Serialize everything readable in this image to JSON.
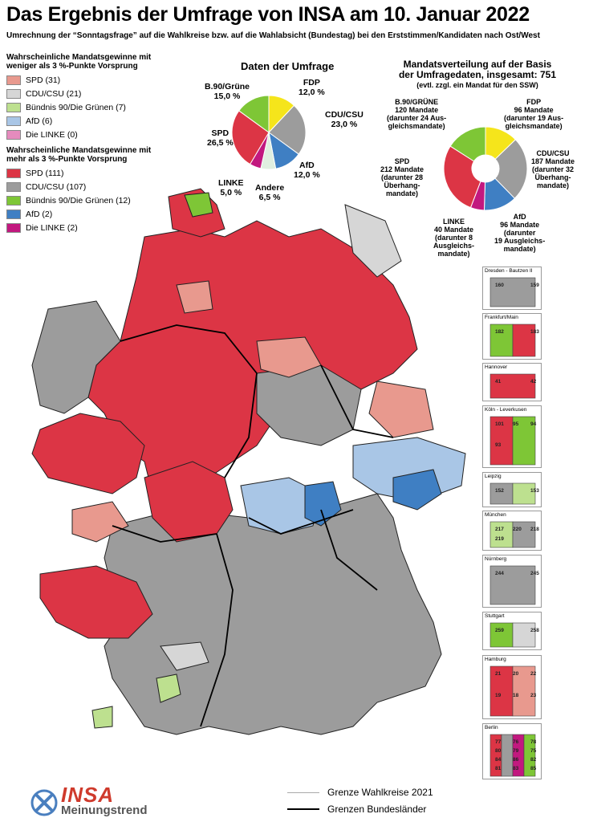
{
  "title": "Das Ergebnis der Umfrage von INSA am 10. Januar 2022",
  "subtitle": "Umrechnung der “Sonntagsfrage” auf die Wahlkreise bzw. auf die Wahlabsicht (Bundestag) bei den Erststimmen/Kandidaten nach Ost/West",
  "colors": {
    "spd_strong": "#dc3545",
    "spd_light": "#e8998e",
    "cdu_strong": "#9c9c9c",
    "cdu_light": "#d6d6d6",
    "gruene_strong": "#7ec636",
    "gruene_light": "#bde08f",
    "afd_strong": "#3f7fc3",
    "afd_light": "#a9c6e6",
    "linke_strong": "#c2187f",
    "linke_light": "#e58bbd",
    "fdp": "#f5e51b",
    "andere": "#e0efe0"
  },
  "legend": {
    "weak_heading": "Wahrscheinliche Mandatsgewinne mit weniger als 3 %-Punkte Vorsprung",
    "weak_items": [
      {
        "label": "SPD (31)",
        "color": "#e8998e"
      },
      {
        "label": "CDU/CSU (21)",
        "color": "#d6d6d6"
      },
      {
        "label": "Bündnis 90/Die Grünen (7)",
        "color": "#bde08f"
      },
      {
        "label": "AfD (6)",
        "color": "#a9c6e6"
      },
      {
        "label": "Die LINKE (0)",
        "color": "#e58bbd"
      }
    ],
    "strong_heading": "Wahrscheinliche Mandatsgewinne mit mehr als 3 %-Punkte Vorsprung",
    "strong_items": [
      {
        "label": "SPD (111)",
        "color": "#dc3545"
      },
      {
        "label": "CDU/CSU (107)",
        "color": "#9c9c9c"
      },
      {
        "label": "Bündnis 90/Die Grünen (12)",
        "color": "#7ec636"
      },
      {
        "label": "AfD (2)",
        "color": "#3f7fc3"
      },
      {
        "label": "Die LINKE (2)",
        "color": "#c2187f"
      }
    ]
  },
  "poll": {
    "heading": "Daten der Umfrage",
    "slices": [
      {
        "party": "FDP",
        "value": 12.0,
        "label": "FDP",
        "value_label": "12,0 %",
        "color": "#f5e51b"
      },
      {
        "party": "CDU/CSU",
        "value": 23.0,
        "label": "CDU/CSU",
        "value_label": "23,0 %",
        "color": "#9c9c9c"
      },
      {
        "party": "AfD",
        "value": 12.0,
        "label": "AfD",
        "value_label": "12,0 %",
        "color": "#3f7fc3"
      },
      {
        "party": "Andere",
        "value": 6.5,
        "label": "Andere",
        "value_label": "6,5 %",
        "color": "#e0efe0"
      },
      {
        "party": "LINKE",
        "value": 5.0,
        "label": "LINKE",
        "value_label": "5,0 %",
        "color": "#c2187f"
      },
      {
        "party": "SPD",
        "value": 26.5,
        "label": "SPD",
        "value_label": "26,5 %",
        "color": "#dc3545"
      },
      {
        "party": "B.90/Grüne",
        "value": 15.0,
        "label": "B.90/Grüne",
        "value_label": "15,0 %",
        "color": "#7ec636"
      }
    ]
  },
  "seats": {
    "heading_line1": "Mandatsverteilung auf der Basis",
    "heading_line2": "der Umfragedaten, insgesamt: 751",
    "note": "(evtl. zzgl. ein Mandat für den SSW)",
    "slices": [
      {
        "party": "FDP",
        "value": 96,
        "lines": [
          "FDP",
          "96 Mandate",
          "(darunter 19 Aus-",
          "gleichsmandate)"
        ],
        "color": "#f5e51b"
      },
      {
        "party": "CDU/CSU",
        "value": 187,
        "lines": [
          "CDU/CSU",
          "187 Mandate",
          "(darunter 32",
          "Überhang-",
          "mandate)"
        ],
        "color": "#9c9c9c"
      },
      {
        "party": "AfD",
        "value": 96,
        "lines": [
          "AfD",
          "96 Mandate",
          "(darunter",
          "19 Ausgleichs-",
          "mandate)"
        ],
        "color": "#3f7fc3"
      },
      {
        "party": "LINKE",
        "value": 40,
        "lines": [
          "LINKE",
          "40 Mandate",
          "(darunter 8",
          "Ausgleichs-",
          "mandate)"
        ],
        "color": "#c2187f"
      },
      {
        "party": "SPD",
        "value": 212,
        "lines": [
          "SPD",
          "212 Mandate",
          "(darunter 28",
          "Überhang-",
          "mandate)"
        ],
        "color": "#dc3545"
      },
      {
        "party": "B.90/GRÜNE",
        "value": 120,
        "lines": [
          "B.90/GRÜNE",
          "120 Mandate",
          "(darunter 24 Aus-",
          "gleichsmandate)"
        ],
        "color": "#7ec636"
      }
    ]
  },
  "insets": [
    {
      "name": "Dresden - Bautzen II",
      "numbers": [
        "160",
        "159"
      ]
    },
    {
      "name": "Frankfurt/Main",
      "numbers": [
        "182",
        "183"
      ]
    },
    {
      "name": "Hannover",
      "numbers": [
        "41",
        "42"
      ]
    },
    {
      "name": "Köln - Leverkusen",
      "numbers": [
        "101",
        "95",
        "94",
        "93"
      ]
    },
    {
      "name": "Leipzig",
      "numbers": [
        "152",
        "153"
      ]
    },
    {
      "name": "München",
      "numbers": [
        "217",
        "220",
        "218",
        "219"
      ]
    },
    {
      "name": "Nürnberg",
      "numbers": [
        "244",
        "245"
      ]
    },
    {
      "name": "Stuttgart",
      "numbers": [
        "259",
        "258"
      ]
    },
    {
      "name": "Hamburg",
      "numbers": [
        "21",
        "20",
        "22",
        "19",
        "18",
        "23"
      ]
    },
    {
      "name": "Berlin",
      "numbers": [
        "77",
        "76",
        "78",
        "80",
        "79",
        "75",
        "84",
        "86",
        "82",
        "81",
        "83",
        "85"
      ]
    }
  ],
  "border_legend": {
    "wahlkreise": "Grenze Wahlkreise 2021",
    "bundeslaender": "Grenzen Bundesländer"
  },
  "logo": {
    "main": "INSA",
    "sub": "Meinungstrend"
  }
}
